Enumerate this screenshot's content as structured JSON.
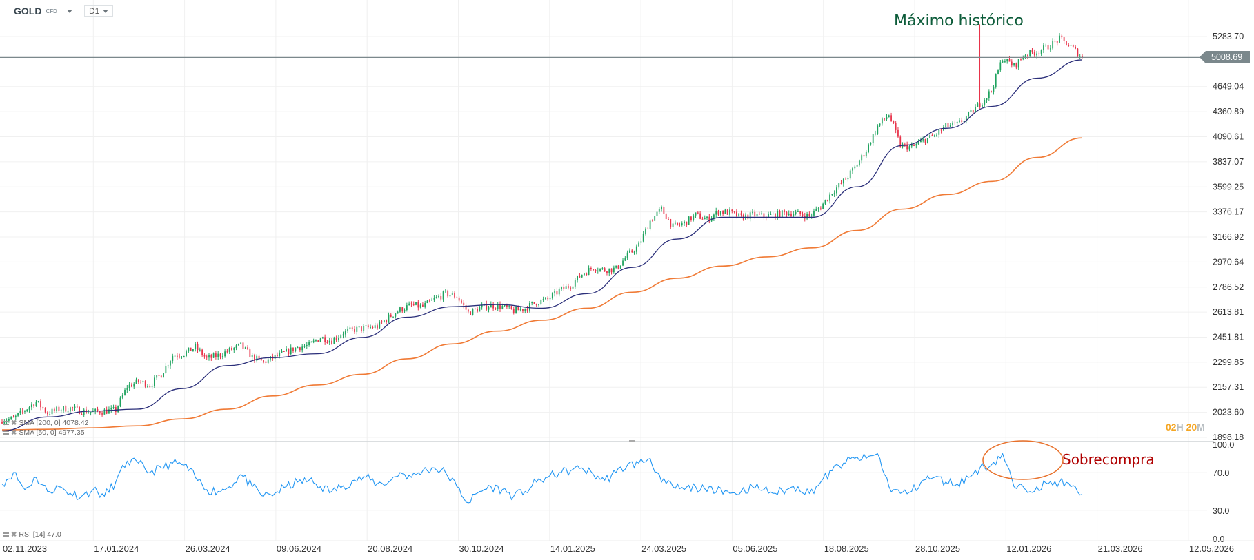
{
  "header": {
    "symbol": "GOLD",
    "type": "CFD",
    "timeframe": "D1"
  },
  "legend": {
    "sma200": "SMA [200, 0] 4078.42",
    "sma50": "SMA [50, 0] 4977.35",
    "rsi": "RSI [14] 47.0"
  },
  "current_price": "5008.69",
  "countdown": {
    "hours": "02",
    "h": "H",
    "minutes": "20",
    "m": "M"
  },
  "annotations": {
    "high": "Máximo histórico",
    "overbought": "Sobrecompra"
  },
  "colors": {
    "up": "#1fa35f",
    "down": "#e8334a",
    "sma50": "#2b2f7a",
    "sma200": "#f07a35",
    "rsi": "#2196f3",
    "annotation_high": "#0d5c3a",
    "annotation_ob": "#b00000",
    "ellipse": "#e8702a"
  },
  "chart_data": {
    "type": "candlestick",
    "scale": "log",
    "price_ticks": [
      "5283.70",
      "4649.04",
      "4360.89",
      "4090.61",
      "3837.07",
      "3599.25",
      "3376.17",
      "3166.92",
      "2970.64",
      "2786.52",
      "2613.81",
      "2451.81",
      "2299.85",
      "2157.31",
      "2023.60",
      "1898.18"
    ],
    "rsi_ticks": [
      "100.0",
      "70.0",
      "30.0",
      "0.0"
    ],
    "date_ticks": [
      "02.11.2023",
      "17.01.2024",
      "26.03.2024",
      "09.06.2024",
      "20.08.2024",
      "30.10.2024",
      "14.01.2025",
      "24.03.2025",
      "05.06.2025",
      "18.08.2025",
      "28.10.2025",
      "12.01.2026",
      "21.03.2026",
      "12.05.2026"
    ],
    "closes": [
      1985,
      1990,
      2035,
      2080,
      2020,
      2040,
      2045,
      2030,
      2025,
      2030,
      2035,
      2160,
      2190,
      2170,
      2230,
      2340,
      2350,
      2390,
      2320,
      2340,
      2370,
      2400,
      2330,
      2300,
      2330,
      2360,
      2390,
      2400,
      2450,
      2430,
      2480,
      2500,
      2510,
      2520,
      2580,
      2630,
      2660,
      2650,
      2700,
      2740,
      2720,
      2610,
      2640,
      2660,
      2650,
      2620,
      2640,
      2680,
      2700,
      2760,
      2800,
      2880,
      2930,
      2910,
      2920,
      3020,
      3100,
      3300,
      3400,
      3250,
      3280,
      3350,
      3310,
      3380,
      3370,
      3330,
      3350,
      3340,
      3350,
      3370,
      3360,
      3340,
      3420,
      3550,
      3650,
      3780,
      3950,
      4200,
      4330,
      4000,
      3980,
      4050,
      4100,
      4200,
      4220,
      4320,
      4450,
      4600,
      5000,
      4900,
      5050,
      5080,
      5150,
      5250,
      5150,
      5008.69
    ],
    "sma50": [
      1930,
      2000,
      2030,
      2040,
      2150,
      2280,
      2327,
      2350,
      2450,
      2580,
      2650,
      2665,
      2640,
      2740,
      2930,
      3150,
      3330,
      3330,
      3330,
      3600,
      4000,
      4180,
      4420,
      4750,
      4977.35
    ],
    "sma200": [
      1935,
      1938,
      1945,
      1955,
      1990,
      2040,
      2110,
      2170,
      2230,
      2320,
      2410,
      2490,
      2560,
      2640,
      2750,
      2850,
      2940,
      3010,
      3080,
      3220,
      3400,
      3530,
      3650,
      3880,
      4078.42
    ],
    "rsi": [
      58,
      70,
      52,
      65,
      50,
      55,
      48,
      45,
      52,
      45,
      60,
      82,
      80,
      70,
      75,
      80,
      78,
      65,
      52,
      50,
      55,
      68,
      55,
      45,
      48,
      55,
      60,
      62,
      55,
      50,
      56,
      62,
      65,
      58,
      60,
      70,
      65,
      72,
      75,
      70,
      55,
      38,
      50,
      55,
      52,
      45,
      50,
      60,
      65,
      70,
      72,
      75,
      68,
      62,
      70,
      78,
      80,
      85,
      60,
      55,
      52,
      55,
      50,
      55,
      48,
      50,
      55,
      52,
      48,
      52,
      55,
      48,
      60,
      72,
      80,
      85,
      85,
      90,
      55,
      48,
      50,
      62,
      65,
      60,
      58,
      65,
      75,
      78,
      90,
      55,
      52,
      55,
      58,
      60,
      55,
      47
    ],
    "ylim": [
      1898.18,
      5283.7
    ],
    "rsi_lim": [
      0,
      100
    ]
  }
}
